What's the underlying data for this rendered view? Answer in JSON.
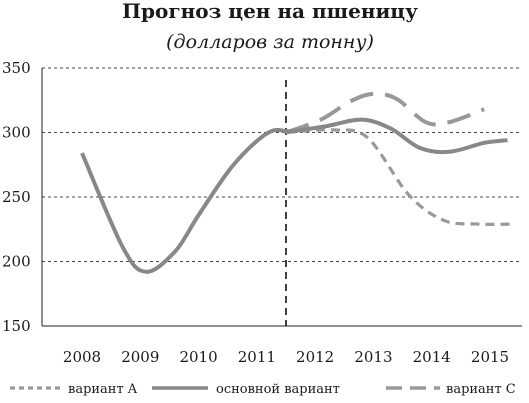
{
  "chart_data": {
    "type": "line",
    "title": "Прогноз цен на пшеницу",
    "subtitle": "(долларов за тонну)",
    "categories": [
      "2008",
      "2009",
      "2010",
      "2011",
      "2012",
      "2013",
      "2014",
      "2015"
    ],
    "ylim": [
      150,
      350
    ],
    "yticks": [
      "350",
      "300",
      "250",
      "200",
      "150"
    ],
    "grid": "horizontal dashed",
    "forecast_divider_x": 2011.5,
    "legend_position": "bottom",
    "series": [
      {
        "name": "вариант A",
        "style": "short-dash",
        "color": "#999999",
        "points": [
          [
            2011.5,
            300
          ],
          [
            2012.3,
            302
          ],
          [
            2012.9,
            296
          ],
          [
            2013.6,
            252
          ],
          [
            2014.2,
            232
          ],
          [
            2014.8,
            229
          ],
          [
            2015.4,
            229
          ]
        ]
      },
      {
        "name": "основной вариант",
        "style": "solid",
        "color": "#888888",
        "points": [
          [
            2008.0,
            284
          ],
          [
            2008.7,
            211
          ],
          [
            2009.1,
            192
          ],
          [
            2009.6,
            208
          ],
          [
            2010.0,
            236
          ],
          [
            2010.6,
            275
          ],
          [
            2011.2,
            300
          ],
          [
            2011.6,
            301
          ],
          [
            2012.2,
            305
          ],
          [
            2012.8,
            310
          ],
          [
            2013.3,
            303
          ],
          [
            2013.8,
            288
          ],
          [
            2014.3,
            285
          ],
          [
            2014.9,
            292
          ],
          [
            2015.3,
            294
          ]
        ]
      },
      {
        "name": "вариант C",
        "style": "long-dash",
        "color": "#999999",
        "points": [
          [
            2011.5,
            300
          ],
          [
            2012.1,
            310
          ],
          [
            2012.6,
            324
          ],
          [
            2013.0,
            330
          ],
          [
            2013.4,
            326
          ],
          [
            2013.9,
            308
          ],
          [
            2014.3,
            308
          ],
          [
            2014.9,
            318
          ]
        ]
      }
    ]
  }
}
